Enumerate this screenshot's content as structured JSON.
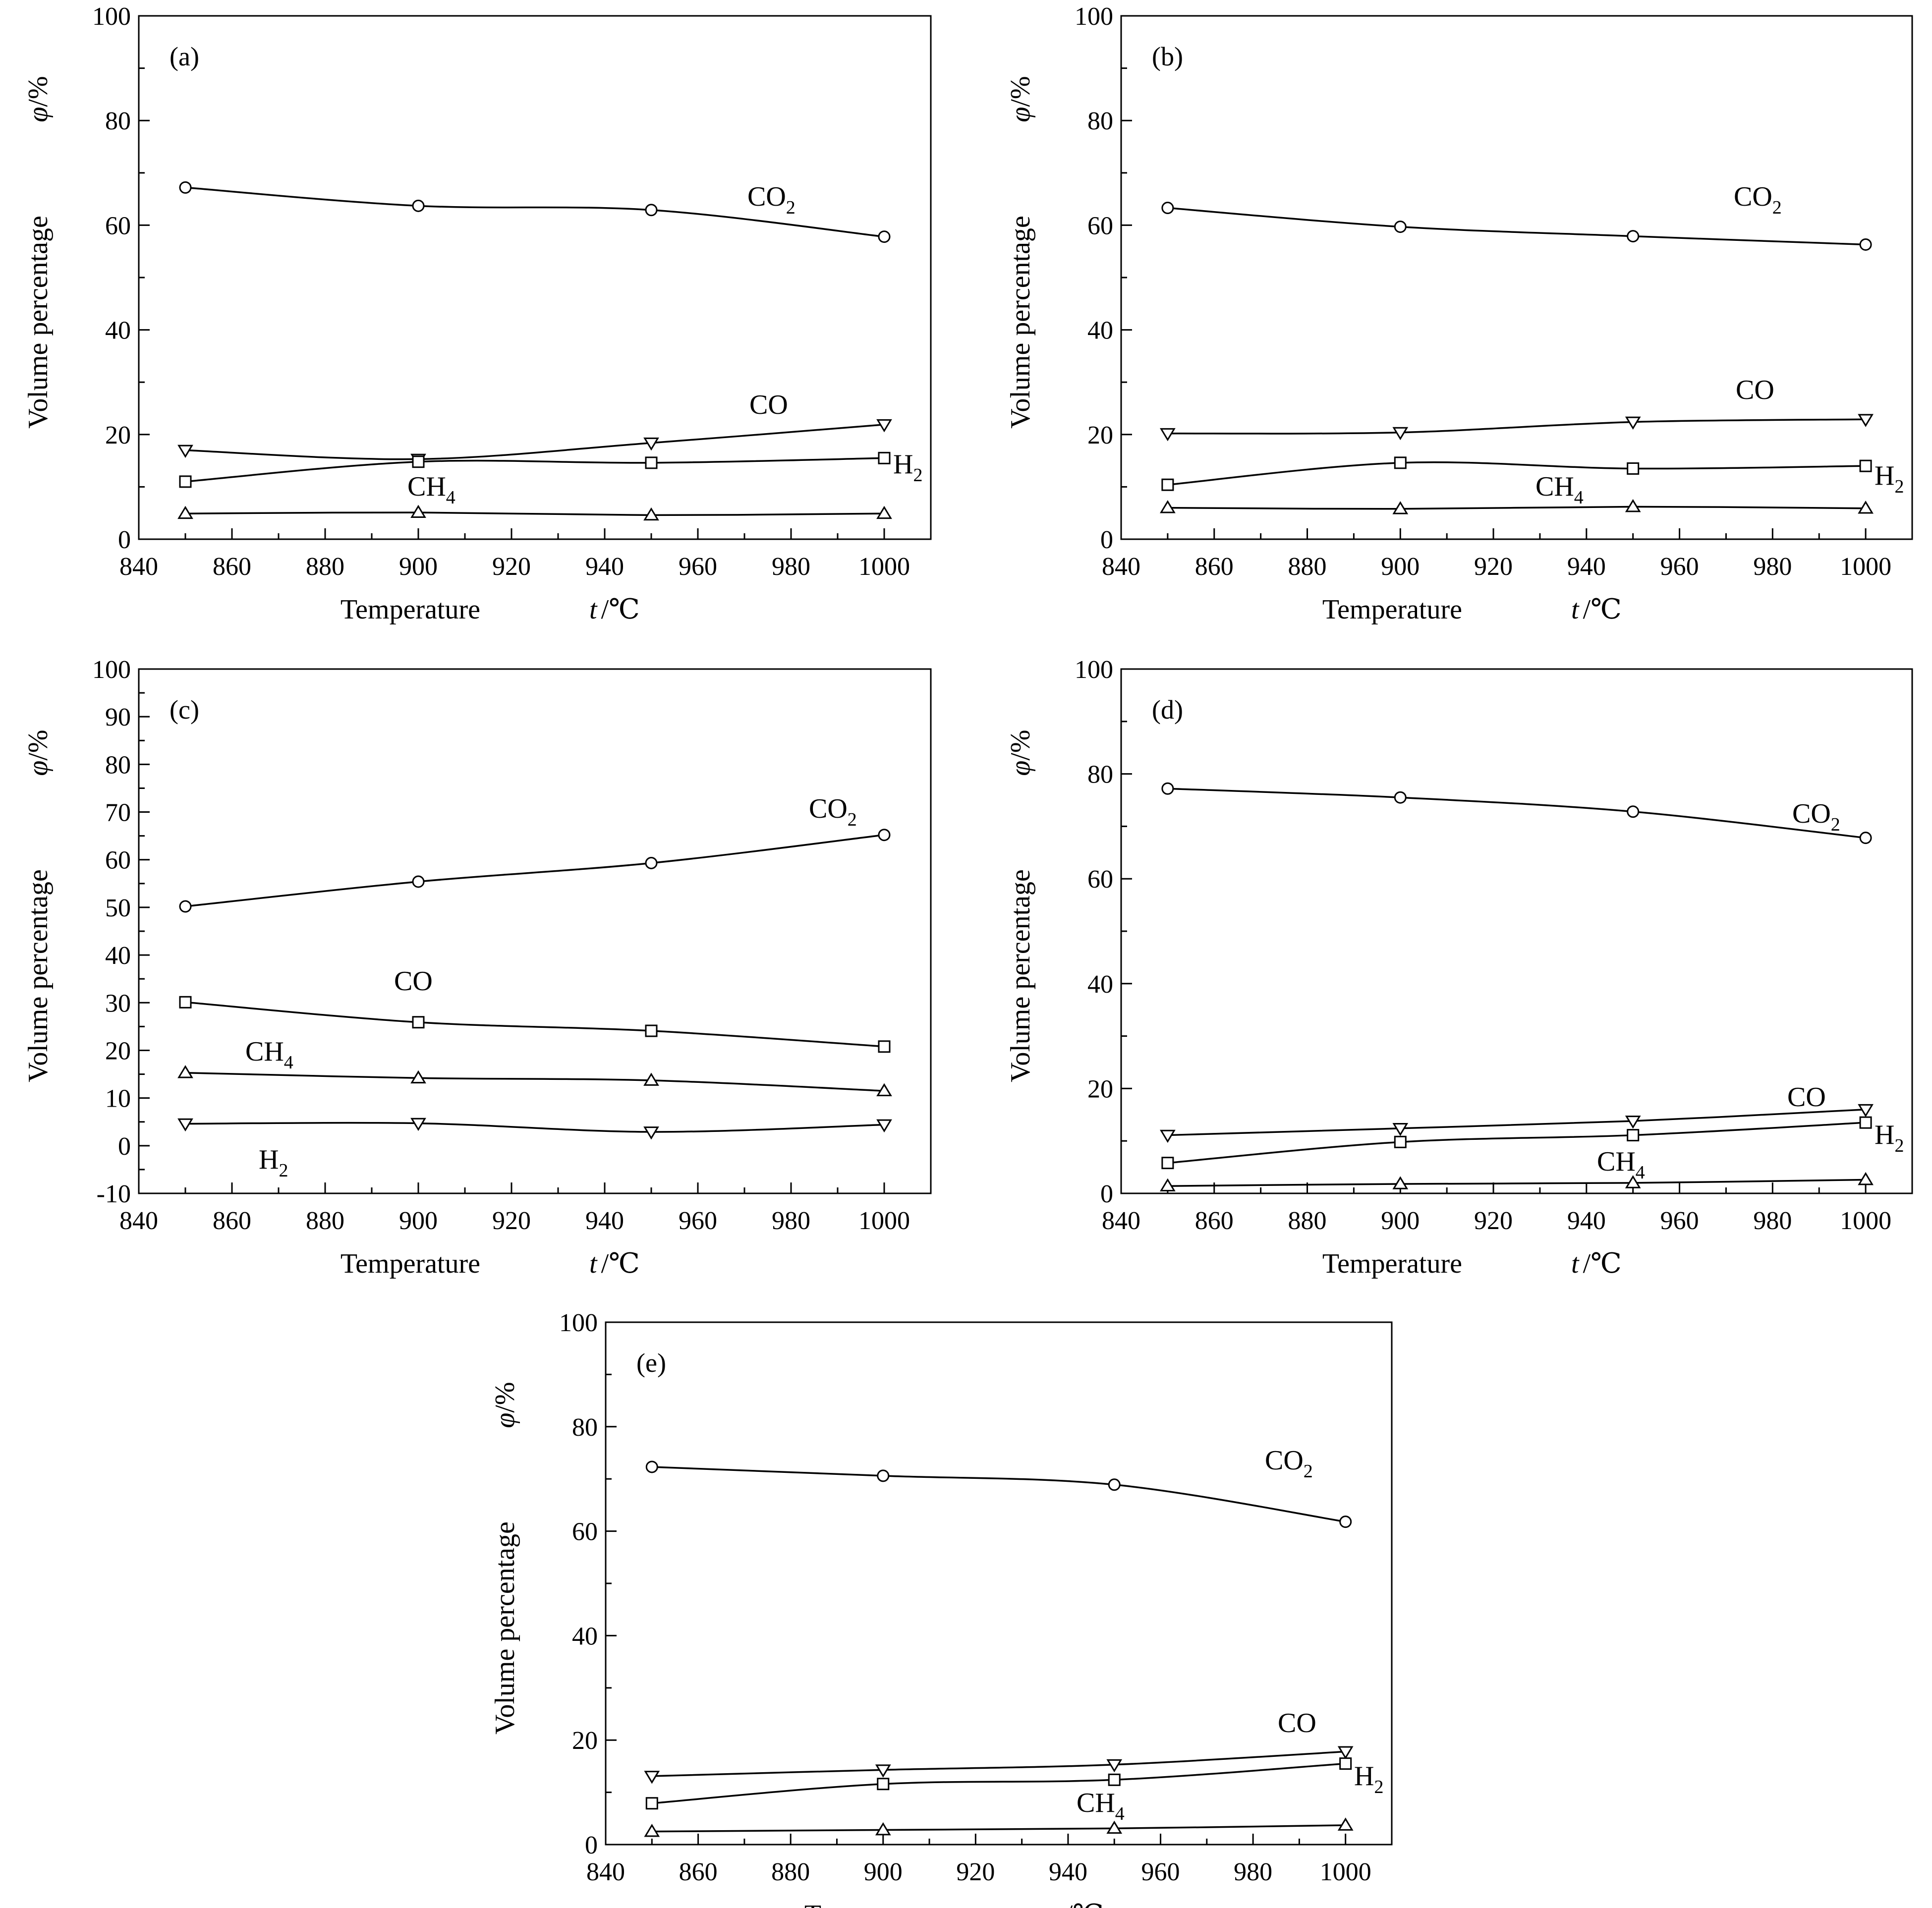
{
  "chart_data": [
    {
      "type": "line",
      "panel": "(a)",
      "xlabel": "Temperature",
      "xunit_var": "t",
      "xunit": "/℃",
      "ylabel": "Volume percentage",
      "yunit_var": "φ",
      "yunit": "/%",
      "xlim": [
        840,
        1010
      ],
      "ylim": [
        0,
        100
      ],
      "xticks": [
        840,
        860,
        880,
        900,
        920,
        940,
        960,
        980,
        1000
      ],
      "yticks": [
        0,
        20,
        40,
        60,
        80,
        100
      ],
      "x": [
        850,
        900,
        950,
        1000
      ],
      "series": [
        {
          "name": "CO2",
          "label_main": "CO",
          "label_sub": "2",
          "marker": "circle",
          "values": [
            67.2,
            63.7,
            62.9,
            57.8
          ]
        },
        {
          "name": "CO",
          "label_main": "CO",
          "label_sub": "",
          "marker": "triangle-down",
          "values": [
            17.0,
            15.3,
            18.4,
            21.9
          ]
        },
        {
          "name": "H2",
          "label_main": "H",
          "label_sub": "2",
          "marker": "square",
          "values": [
            11.0,
            14.8,
            14.6,
            15.5
          ]
        },
        {
          "name": "CH4",
          "label_main": "CH",
          "label_sub": "4",
          "marker": "triangle-up",
          "values": [
            4.9,
            5.1,
            4.6,
            4.9
          ]
        }
      ]
    },
    {
      "type": "line",
      "panel": "(b)",
      "xlabel": "Temperature",
      "xunit_var": "t",
      "xunit": "/℃",
      "ylabel": "Volume percentage",
      "yunit_var": "φ",
      "yunit": "/%",
      "xlim": [
        840,
        1010
      ],
      "ylim": [
        0,
        100
      ],
      "xticks": [
        840,
        860,
        880,
        900,
        920,
        940,
        960,
        980,
        1000
      ],
      "yticks": [
        0,
        20,
        40,
        60,
        80,
        100
      ],
      "x": [
        850,
        900,
        950,
        1000
      ],
      "series": [
        {
          "name": "CO2",
          "label_main": "CO",
          "label_sub": "2",
          "marker": "circle",
          "values": [
            63.3,
            59.7,
            57.9,
            56.3
          ]
        },
        {
          "name": "CO",
          "label_main": "CO",
          "label_sub": "",
          "marker": "triangle-down",
          "values": [
            20.2,
            20.4,
            22.4,
            22.9
          ]
        },
        {
          "name": "H2",
          "label_main": "H",
          "label_sub": "2",
          "marker": "square",
          "values": [
            10.4,
            14.6,
            13.5,
            14.0
          ]
        },
        {
          "name": "CH4",
          "label_main": "CH",
          "label_sub": "4",
          "marker": "triangle-up",
          "values": [
            6.0,
            5.8,
            6.2,
            5.9
          ]
        }
      ]
    },
    {
      "type": "line",
      "panel": "(c)",
      "xlabel": "Temperature",
      "xunit_var": "t",
      "xunit": "/℃",
      "ylabel": "Volume percentage",
      "yunit_var": "φ",
      "yunit": "/%",
      "xlim": [
        840,
        1010
      ],
      "ylim": [
        -10,
        100
      ],
      "xticks": [
        840,
        860,
        880,
        900,
        920,
        940,
        960,
        980,
        1000
      ],
      "yticks": [
        -10,
        0,
        10,
        20,
        30,
        40,
        50,
        60,
        70,
        80,
        90,
        100
      ],
      "x": [
        850,
        900,
        950,
        1000
      ],
      "series": [
        {
          "name": "CO2",
          "label_main": "CO",
          "label_sub": "2",
          "marker": "circle",
          "values": [
            50.2,
            55.4,
            59.3,
            65.2
          ]
        },
        {
          "name": "CO",
          "label_main": "CO",
          "label_sub": "",
          "marker": "square",
          "values": [
            30.1,
            25.9,
            24.1,
            20.8
          ]
        },
        {
          "name": "CH4",
          "label_main": "CH",
          "label_sub": "4",
          "marker": "triangle-up",
          "values": [
            15.3,
            14.2,
            13.7,
            11.5
          ]
        },
        {
          "name": "H2",
          "label_main": "H",
          "label_sub": "2",
          "marker": "triangle-down",
          "values": [
            4.6,
            4.7,
            2.9,
            4.4
          ]
        }
      ]
    },
    {
      "type": "line",
      "panel": "(d)",
      "xlabel": "Temperature",
      "xunit_var": "t",
      "xunit": "/℃",
      "ylabel": "Volume percentage",
      "yunit_var": "φ",
      "yunit": "/%",
      "xlim": [
        840,
        1010
      ],
      "ylim": [
        0,
        100
      ],
      "xticks": [
        840,
        860,
        880,
        900,
        920,
        940,
        960,
        980,
        1000
      ],
      "yticks": [
        0,
        20,
        40,
        60,
        80,
        100
      ],
      "x": [
        850,
        900,
        950,
        1000
      ],
      "series": [
        {
          "name": "CO2",
          "label_main": "CO",
          "label_sub": "2",
          "marker": "circle",
          "values": [
            77.2,
            75.5,
            72.8,
            67.8
          ]
        },
        {
          "name": "CO",
          "label_main": "CO",
          "label_sub": "",
          "marker": "triangle-down",
          "values": [
            11.1,
            12.4,
            13.8,
            16.0
          ]
        },
        {
          "name": "H2",
          "label_main": "H",
          "label_sub": "2",
          "marker": "square",
          "values": [
            5.8,
            9.8,
            11.1,
            13.5
          ]
        },
        {
          "name": "CH4",
          "label_main": "CH",
          "label_sub": "4",
          "marker": "triangle-up",
          "values": [
            1.4,
            1.8,
            2.0,
            2.6
          ]
        }
      ]
    },
    {
      "type": "line",
      "panel": "(e)",
      "xlabel": "Temperature",
      "xunit_var": "t",
      "xunit": "/℃",
      "ylabel": "Volume percentage",
      "yunit_var": "φ",
      "yunit": "/%",
      "xlim": [
        840,
        1010
      ],
      "ylim": [
        0,
        100
      ],
      "xticks": [
        840,
        860,
        880,
        900,
        920,
        940,
        960,
        980,
        1000
      ],
      "yticks": [
        0,
        20,
        40,
        60,
        80,
        100
      ],
      "x": [
        850,
        900,
        950,
        1000
      ],
      "series": [
        {
          "name": "CO2",
          "label_main": "CO",
          "label_sub": "2",
          "marker": "circle",
          "values": [
            72.3,
            70.6,
            68.9,
            61.8
          ]
        },
        {
          "name": "CO",
          "label_main": "CO",
          "label_sub": "",
          "marker": "triangle-down",
          "values": [
            13.1,
            14.3,
            15.3,
            17.8
          ]
        },
        {
          "name": "H2",
          "label_main": "H",
          "label_sub": "2",
          "marker": "square",
          "values": [
            7.9,
            11.6,
            12.4,
            15.5
          ]
        },
        {
          "name": "CH4",
          "label_main": "CH",
          "label_sub": "4",
          "marker": "triangle-up",
          "values": [
            2.5,
            2.8,
            3.1,
            3.7
          ]
        }
      ]
    }
  ]
}
